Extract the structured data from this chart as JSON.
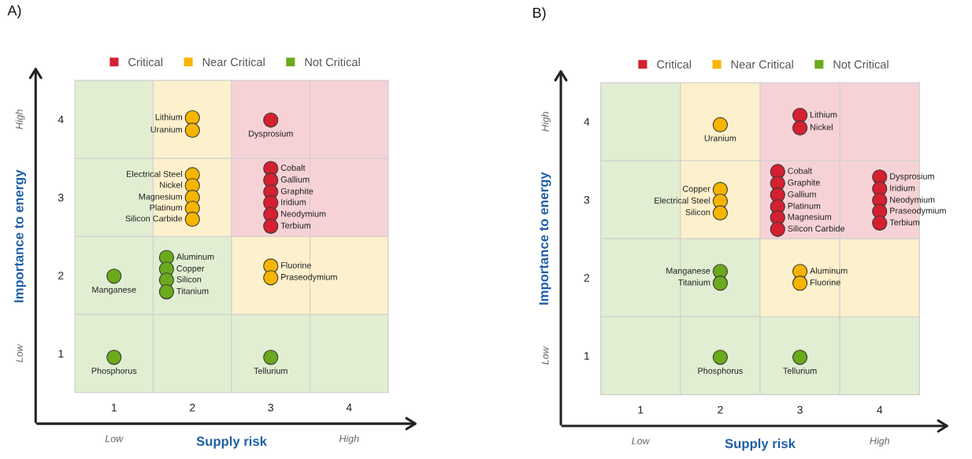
{
  "chart_data": [
    {
      "type": "scatter",
      "title": "A)",
      "xlabel": "Supply risk",
      "ylabel": "Importance to energy",
      "xlim": [
        0.5,
        4.5
      ],
      "ylim": [
        0.5,
        4.5
      ],
      "xticks": [
        1,
        2,
        3,
        4
      ],
      "yticks": [
        1,
        2,
        3,
        4
      ],
      "marker": "circle",
      "legend": "top",
      "grid": false,
      "series": [
        {
          "name": "Critical",
          "color": "#d42030",
          "x": [
            3,
            3,
            3,
            3,
            3,
            3,
            3
          ],
          "values": [
            3.99,
            3.37,
            3.22,
            3.07,
            2.93,
            2.78,
            2.63
          ]
        },
        {
          "name": "Near Critical",
          "color": "#f7b500",
          "x": [
            2,
            2,
            2,
            2,
            2,
            2,
            2,
            3,
            3
          ],
          "values": [
            4.02,
            3.86,
            3.29,
            3.15,
            3.0,
            2.86,
            2.72,
            2.12,
            1.97
          ]
        },
        {
          "name": "Not Critical",
          "color": "#6aaa1c",
          "x": [
            1,
            1.67,
            1.67,
            1.67,
            1.67,
            1,
            3
          ],
          "values": [
            1.99,
            2.23,
            2.08,
            1.94,
            1.79,
            0.95,
            0.95
          ]
        }
      ],
      "annotations": [
        "Low",
        "High",
        "Low",
        "High",
        {
          "text": "Lithium",
          "x": 2,
          "y": 4.02
        },
        {
          "text": "Uranium",
          "x": 2,
          "y": 3.86
        },
        {
          "text": "Electrical Steel",
          "x": 2,
          "y": 3.29
        },
        {
          "text": "Nickel",
          "x": 2,
          "y": 3.15
        },
        {
          "text": "Magnesium",
          "x": 2,
          "y": 3.0
        },
        {
          "text": "Platinum",
          "x": 2,
          "y": 2.86
        },
        {
          "text": "Silicon Carbide",
          "x": 2,
          "y": 2.72
        },
        {
          "text": "Dysprosium",
          "x": 3,
          "y": 3.99
        },
        {
          "text": "Cobalt",
          "x": 3,
          "y": 3.37
        },
        {
          "text": "Gallium",
          "x": 3,
          "y": 3.22
        },
        {
          "text": "Graphite",
          "x": 3,
          "y": 3.07
        },
        {
          "text": "Iridium",
          "x": 3,
          "y": 2.93
        },
        {
          "text": "Neodymium",
          "x": 3,
          "y": 2.78
        },
        {
          "text": "Terbium",
          "x": 3,
          "y": 2.63
        },
        {
          "text": "Aluminum",
          "x": 1.67,
          "y": 2.23
        },
        {
          "text": "Copper",
          "x": 1.67,
          "y": 2.08
        },
        {
          "text": "Silicon",
          "x": 1.67,
          "y": 1.94
        },
        {
          "text": "Titanium",
          "x": 1.67,
          "y": 1.79
        },
        {
          "text": "Manganese",
          "x": 1,
          "y": 1.99
        },
        {
          "text": "Fluorine",
          "x": 3,
          "y": 2.12
        },
        {
          "text": "Praseodymium",
          "x": 3,
          "y": 1.97
        },
        {
          "text": "Phosphorus",
          "x": 1,
          "y": 0.95
        },
        {
          "text": "Tellurium",
          "x": 3,
          "y": 0.95
        }
      ]
    },
    {
      "type": "scatter",
      "title": "B)",
      "xlabel": "Supply risk",
      "ylabel": "Importance to energy",
      "xlim": [
        0.5,
        4.5
      ],
      "ylim": [
        0.5,
        4.5
      ],
      "xticks": [
        1,
        2,
        3,
        4
      ],
      "yticks": [
        1,
        2,
        3,
        4
      ],
      "marker": "circle",
      "legend": "top",
      "grid": false,
      "series": [
        {
          "name": "Critical",
          "color": "#d42030",
          "x": [
            3,
            3,
            2.72,
            2.72,
            2.72,
            2.72,
            2.72,
            2.72,
            4,
            4,
            4,
            4,
            4
          ],
          "values": [
            4.08,
            3.92,
            3.36,
            3.21,
            3.06,
            2.91,
            2.77,
            2.62,
            3.29,
            3.14,
            2.99,
            2.85,
            2.7
          ]
        },
        {
          "name": "Near Critical",
          "color": "#f7b500",
          "x": [
            2,
            2,
            2,
            2,
            3,
            3
          ],
          "values": [
            3.96,
            3.13,
            2.98,
            2.83,
            2.08,
            1.93
          ]
        },
        {
          "name": "Not Critical",
          "color": "#6aaa1c",
          "x": [
            2,
            2,
            2,
            3
          ],
          "values": [
            2.08,
            1.93,
            0.98,
            0.98
          ]
        }
      ],
      "annotations": [
        "Low",
        "High",
        "Low",
        "High",
        {
          "text": "Uranium",
          "x": 2,
          "y": 3.96
        },
        {
          "text": "Lithium",
          "x": 3,
          "y": 4.08
        },
        {
          "text": "Nickel",
          "x": 3,
          "y": 3.92
        },
        {
          "text": "Copper",
          "x": 2,
          "y": 3.13
        },
        {
          "text": "Electrical Steel",
          "x": 2,
          "y": 2.98
        },
        {
          "text": "Silicon",
          "x": 2,
          "y": 2.83
        },
        {
          "text": "Cobalt",
          "x": 2.72,
          "y": 3.36
        },
        {
          "text": "Graphite",
          "x": 2.72,
          "y": 3.21
        },
        {
          "text": "Gallium",
          "x": 2.72,
          "y": 3.06
        },
        {
          "text": "Platinum",
          "x": 2.72,
          "y": 2.91
        },
        {
          "text": "Magnesium",
          "x": 2.72,
          "y": 2.77
        },
        {
          "text": "Silicon Carbide",
          "x": 2.72,
          "y": 2.62
        },
        {
          "text": "Dysprosium",
          "x": 4,
          "y": 3.29
        },
        {
          "text": "Iridium",
          "x": 4,
          "y": 3.14
        },
        {
          "text": "Neodymium",
          "x": 4,
          "y": 2.99
        },
        {
          "text": "Praseodymium",
          "x": 4,
          "y": 2.85
        },
        {
          "text": "Terbium",
          "x": 4,
          "y": 2.7
        },
        {
          "text": "Manganese",
          "x": 2,
          "y": 2.08
        },
        {
          "text": "Titanium",
          "x": 2,
          "y": 1.93
        },
        {
          "text": "Aluminum",
          "x": 3,
          "y": 2.08
        },
        {
          "text": "Fluorine",
          "x": 3,
          "y": 1.93
        },
        {
          "text": "Phosphorus",
          "x": 2,
          "y": 0.98
        },
        {
          "text": "Tellurium",
          "x": 3,
          "y": 0.98
        }
      ]
    }
  ]
}
